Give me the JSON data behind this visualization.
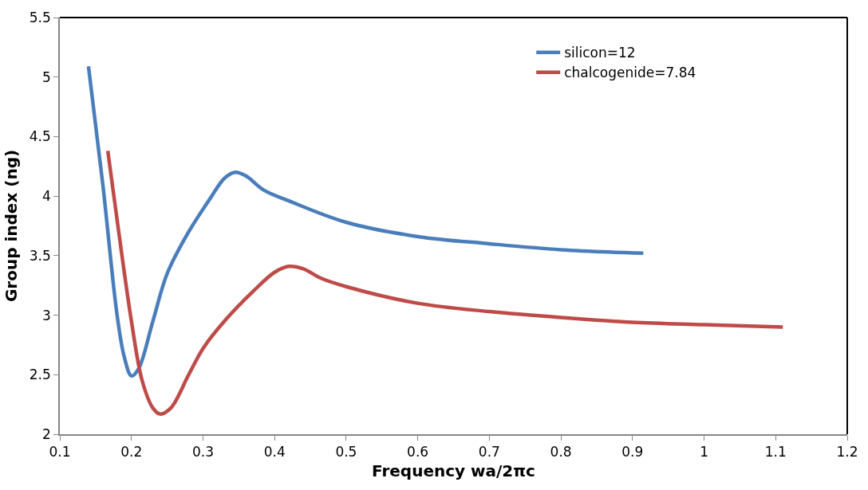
{
  "chart_data": {
    "type": "line",
    "xlabel": "Frequency wa/2πc",
    "ylabel": "Group index (ng)",
    "xlim": [
      0.1,
      1.2
    ],
    "xticks": [
      0.1,
      0.2,
      0.3,
      0.4,
      0.5,
      0.6,
      0.7,
      0.8,
      0.9,
      1,
      1.1,
      1.2
    ],
    "ylim": [
      2,
      5.5
    ],
    "yticks": [
      2,
      2.5,
      3,
      3.5,
      4,
      4.5,
      5,
      5.5
    ],
    "legend": "top right",
    "marker": "none",
    "line_style": "solid",
    "series": [
      {
        "name": "silicon=12",
        "color": "#4a7ebb",
        "x": [
          0.14,
          0.16,
          0.18,
          0.19,
          0.2,
          0.21,
          0.23,
          0.25,
          0.28,
          0.31,
          0.33,
          0.345,
          0.36,
          0.385,
          0.42,
          0.5,
          0.6,
          0.7,
          0.8,
          0.915
        ],
        "values": [
          5.09,
          4.1,
          3.0,
          2.65,
          2.49,
          2.55,
          2.95,
          3.35,
          3.7,
          3.98,
          4.15,
          4.2,
          4.17,
          4.05,
          3.96,
          3.78,
          3.66,
          3.6,
          3.55,
          3.52
        ]
      },
      {
        "name": "chalcogenide=7.84",
        "color": "#be4b48",
        "x": [
          0.167,
          0.18,
          0.2,
          0.215,
          0.23,
          0.24,
          0.255,
          0.28,
          0.3,
          0.33,
          0.37,
          0.4,
          0.42,
          0.44,
          0.465,
          0.5,
          0.6,
          0.7,
          0.8,
          0.9,
          1.0,
          1.11
        ],
        "values": [
          4.38,
          3.8,
          2.95,
          2.45,
          2.22,
          2.17,
          2.22,
          2.5,
          2.72,
          2.95,
          3.2,
          3.36,
          3.41,
          3.39,
          3.31,
          3.24,
          3.1,
          3.03,
          2.98,
          2.94,
          2.92,
          2.9
        ]
      }
    ]
  }
}
